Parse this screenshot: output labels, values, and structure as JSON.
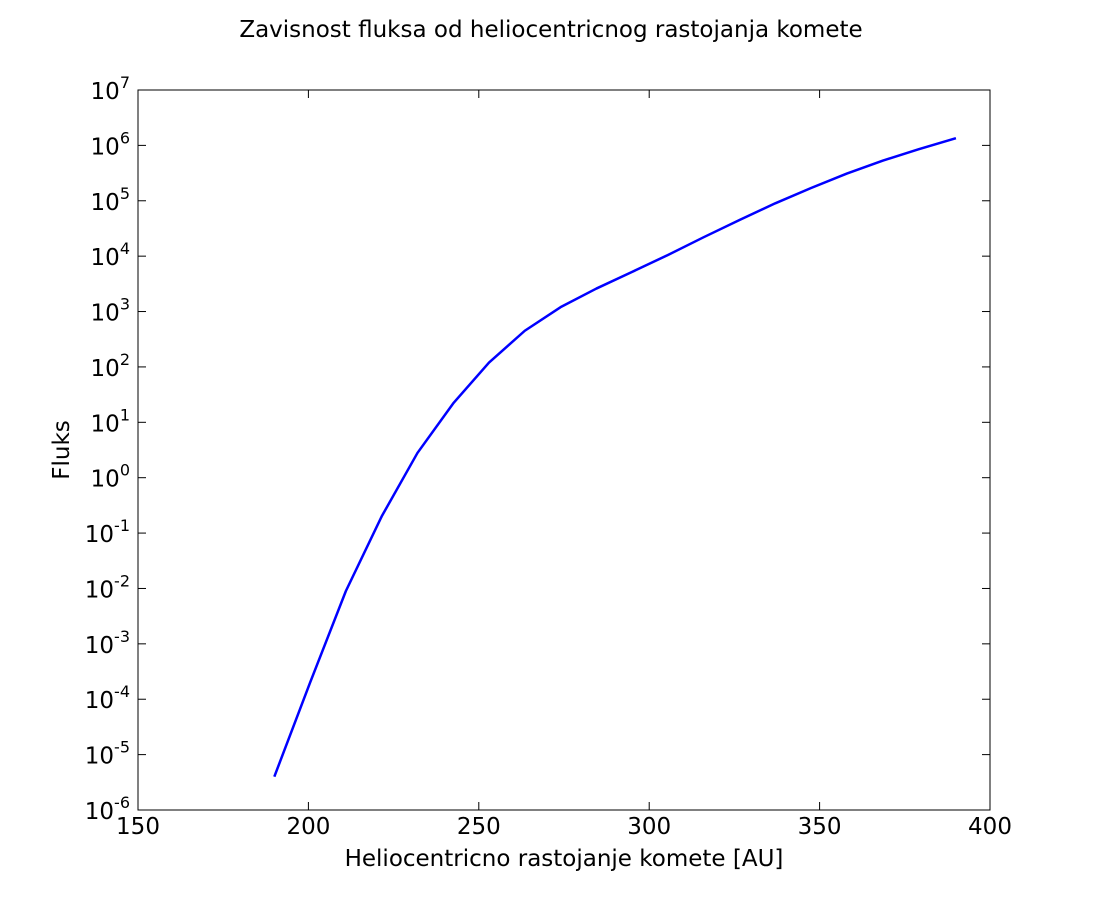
{
  "chart_data": {
    "type": "line",
    "title": "Zavisnost fluksa od heliocentricnog rastojanja komete",
    "xlabel": "Heliocentricno rastojanje komete [AU]",
    "ylabel": "Fluks",
    "xlim": [
      150,
      400
    ],
    "ylim": [
      1e-06,
      10000000
    ],
    "yscale": "log",
    "grid": false,
    "x_ticks": [
      150,
      200,
      250,
      300,
      350,
      400
    ],
    "x_tick_labels": [
      "150",
      "200",
      "250",
      "300",
      "350",
      "400"
    ],
    "y_ticks": [
      1e-06,
      1e-05,
      0.0001,
      0.001,
      0.01,
      0.1,
      1,
      10,
      100,
      1000,
      10000,
      100000,
      1000000,
      10000000
    ],
    "y_tick_labels": [
      {
        "base": "10",
        "exp": "-6"
      },
      {
        "base": "10",
        "exp": "-5"
      },
      {
        "base": "10",
        "exp": "-4"
      },
      {
        "base": "10",
        "exp": "-3"
      },
      {
        "base": "10",
        "exp": "-2"
      },
      {
        "base": "10",
        "exp": "-1"
      },
      {
        "base": "10",
        "exp": "0"
      },
      {
        "base": "10",
        "exp": "1"
      },
      {
        "base": "10",
        "exp": "2"
      },
      {
        "base": "10",
        "exp": "3"
      },
      {
        "base": "10",
        "exp": "4"
      },
      {
        "base": "10",
        "exp": "5"
      },
      {
        "base": "10",
        "exp": "6"
      },
      {
        "base": "10",
        "exp": "7"
      }
    ],
    "series": [
      {
        "color": "#0000ff",
        "x": [
          190,
          200.5,
          211,
          221.5,
          232,
          242.5,
          253,
          263.5,
          274,
          284.5,
          295,
          305.5,
          316,
          326.5,
          337,
          347.5,
          358,
          368.5,
          379,
          390
        ],
        "y": [
          4e-06,
          0.0002,
          0.009,
          0.2,
          2.8,
          22,
          120,
          450,
          1200,
          2600,
          5200,
          10500,
          22000,
          45000,
          90000,
          170000,
          310000,
          530000,
          850000,
          1350000
        ]
      }
    ]
  }
}
